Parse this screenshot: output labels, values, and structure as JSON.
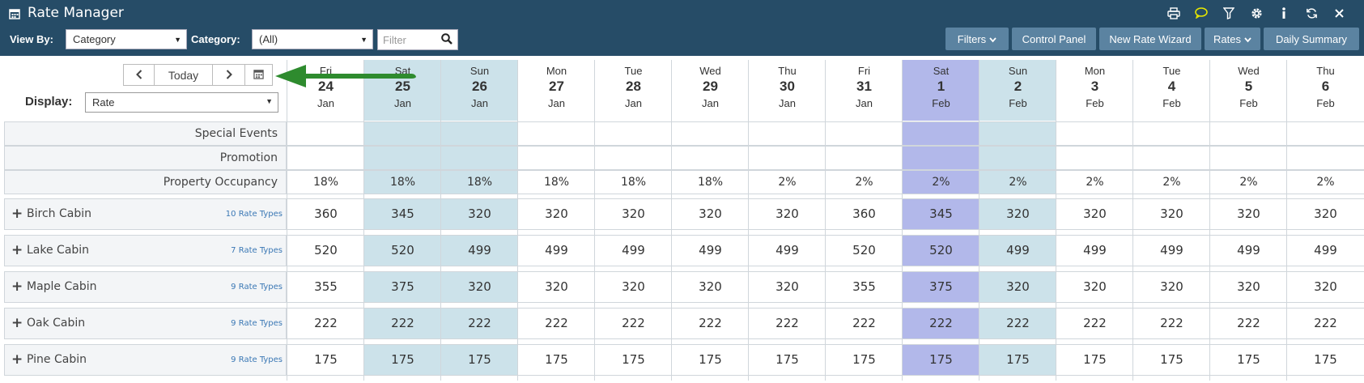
{
  "window": {
    "title": "Rate Manager",
    "app_icon": "calendar-icon"
  },
  "top_icons": [
    {
      "name": "print-icon",
      "glyph": "⎙"
    },
    {
      "name": "chat-icon",
      "glyph": "💬"
    },
    {
      "name": "filter-funnel-icon",
      "glyph": "⛛"
    },
    {
      "name": "gear-icon",
      "glyph": "⚙"
    },
    {
      "name": "info-icon",
      "glyph": "i"
    },
    {
      "name": "refresh-icon",
      "glyph": "⟳"
    },
    {
      "name": "close-icon",
      "glyph": "✕"
    }
  ],
  "toolbar": {
    "view_by_label": "View By:",
    "view_by_value": "Category",
    "category_label": "Category:",
    "category_value": "(All)",
    "filter_placeholder": "Filter",
    "buttons": {
      "filters": "Filters",
      "control_panel": "Control Panel",
      "new_rate_wizard": "New Rate Wizard",
      "rates": "Rates",
      "daily_summary": "Daily Summary"
    }
  },
  "nav": {
    "today_label": "Today"
  },
  "display": {
    "label": "Display:",
    "value": "Rate"
  },
  "colors": {
    "header_bg": "#264c67",
    "button_bg": "#5b83a1",
    "weekend": "#cce2ea",
    "selected_day": "#b2b8ea",
    "arrow": "#2e8b2e",
    "link": "#3b78b5"
  },
  "days": [
    {
      "dow": "Fri",
      "num": "24",
      "mon": "Jan",
      "type": "normal"
    },
    {
      "dow": "Sat",
      "num": "25",
      "mon": "Jan",
      "type": "weekend"
    },
    {
      "dow": "Sun",
      "num": "26",
      "mon": "Jan",
      "type": "weekend"
    },
    {
      "dow": "Mon",
      "num": "27",
      "mon": "Jan",
      "type": "normal"
    },
    {
      "dow": "Tue",
      "num": "28",
      "mon": "Jan",
      "type": "normal"
    },
    {
      "dow": "Wed",
      "num": "29",
      "mon": "Jan",
      "type": "normal"
    },
    {
      "dow": "Thu",
      "num": "30",
      "mon": "Jan",
      "type": "normal"
    },
    {
      "dow": "Fri",
      "num": "31",
      "mon": "Jan",
      "type": "normal"
    },
    {
      "dow": "Sat",
      "num": "1",
      "mon": "Feb",
      "type": "selected"
    },
    {
      "dow": "Sun",
      "num": "2",
      "mon": "Feb",
      "type": "weekend"
    },
    {
      "dow": "Mon",
      "num": "3",
      "mon": "Feb",
      "type": "normal"
    },
    {
      "dow": "Tue",
      "num": "4",
      "mon": "Feb",
      "type": "normal"
    },
    {
      "dow": "Wed",
      "num": "5",
      "mon": "Feb",
      "type": "normal"
    },
    {
      "dow": "Thu",
      "num": "6",
      "mon": "Feb",
      "type": "normal"
    }
  ],
  "info_rows": {
    "special_events": "Special Events",
    "promotion": "Promotion",
    "property_occupancy": "Property Occupancy",
    "occupancy_values": [
      "18%",
      "18%",
      "18%",
      "18%",
      "18%",
      "18%",
      "2%",
      "2%",
      "2%",
      "2%",
      "2%",
      "2%",
      "2%",
      "2%"
    ]
  },
  "rooms": [
    {
      "name": "Birch Cabin",
      "rate_types": "10 Rate Types",
      "rates": [
        "360",
        "345",
        "320",
        "320",
        "320",
        "320",
        "320",
        "360",
        "345",
        "320",
        "320",
        "320",
        "320",
        "320"
      ]
    },
    {
      "name": "Lake Cabin",
      "rate_types": "7 Rate Types",
      "rates": [
        "520",
        "520",
        "499",
        "499",
        "499",
        "499",
        "499",
        "520",
        "520",
        "499",
        "499",
        "499",
        "499",
        "499"
      ]
    },
    {
      "name": "Maple Cabin",
      "rate_types": "9 Rate Types",
      "rates": [
        "355",
        "375",
        "320",
        "320",
        "320",
        "320",
        "320",
        "355",
        "375",
        "320",
        "320",
        "320",
        "320",
        "320"
      ]
    },
    {
      "name": "Oak Cabin",
      "rate_types": "9 Rate Types",
      "rates": [
        "222",
        "222",
        "222",
        "222",
        "222",
        "222",
        "222",
        "222",
        "222",
        "222",
        "222",
        "222",
        "222",
        "222"
      ]
    },
    {
      "name": "Pine Cabin",
      "rate_types": "9 Rate Types",
      "rates": [
        "175",
        "175",
        "175",
        "175",
        "175",
        "175",
        "175",
        "175",
        "175",
        "175",
        "175",
        "175",
        "175",
        "175"
      ]
    }
  ]
}
